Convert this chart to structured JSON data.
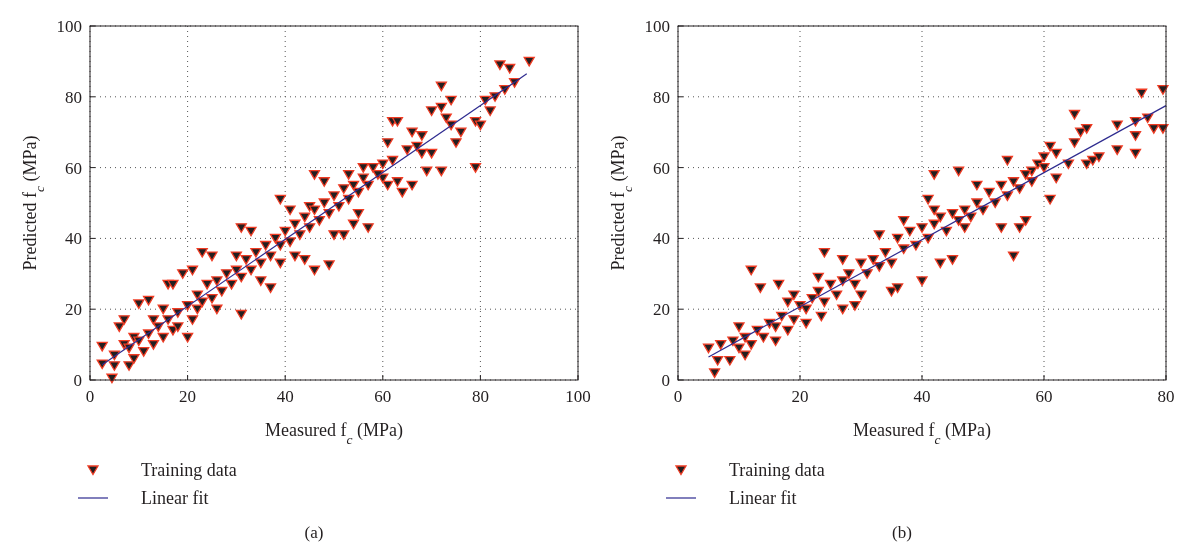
{
  "chart_data": [
    {
      "type": "scatter",
      "title": "(a)",
      "xlabel": "Measured f$_{c}$ (MPa)",
      "ylabel": "Predicted f$_{c}$ (MPa)",
      "xlim": [
        0,
        100
      ],
      "ylim": [
        0,
        100
      ],
      "xticks": [
        0,
        20,
        40,
        60,
        80,
        100
      ],
      "yticks": [
        0,
        20,
        40,
        60,
        80,
        100
      ],
      "grid": true,
      "legend": "bottom left",
      "series": [
        {
          "name": "Training data",
          "marker": "triangle",
          "color": "#f03c24",
          "x": [
            2.5,
            2.5,
            4.5,
            5,
            6,
            7,
            9,
            8,
            10,
            12,
            13,
            15,
            16,
            17,
            20,
            19,
            21,
            22,
            23,
            25,
            26,
            30,
            31,
            31,
            33,
            35,
            37,
            39,
            39,
            41,
            42,
            44,
            45,
            46,
            46,
            49,
            48,
            50,
            52,
            53,
            54,
            55,
            57,
            56,
            60,
            61,
            61,
            62,
            63,
            63,
            64,
            66,
            66,
            68,
            70,
            69,
            70,
            72,
            72,
            72,
            73,
            74,
            74,
            75,
            76,
            79,
            79,
            80,
            81,
            82,
            83,
            84,
            86,
            85,
            87,
            90,
            5,
            7,
            8,
            9,
            10,
            11,
            12,
            13,
            14,
            15,
            16,
            17,
            18,
            18,
            20,
            21,
            22,
            23,
            24,
            25,
            26,
            27,
            28,
            29,
            30,
            31,
            32,
            33,
            34,
            35,
            36,
            37,
            38,
            39,
            40,
            41,
            42,
            43,
            44,
            45,
            46,
            47,
            48,
            49,
            50,
            51,
            52,
            53,
            54,
            55,
            56,
            57,
            58,
            59,
            60,
            62,
            65,
            67,
            68
          ],
          "values": [
            9.5,
            4.5,
            0.5,
            4,
            15,
            17,
            12,
            4,
            21.5,
            22.5,
            17,
            20,
            27,
            27,
            12,
            30,
            31,
            20,
            36,
            35,
            20,
            35,
            18.5,
            43,
            42,
            28,
            26,
            33,
            51,
            48,
            35,
            34,
            49,
            31,
            58,
            32.5,
            56,
            41,
            41,
            58,
            44,
            47,
            43,
            60,
            57,
            67,
            55,
            73,
            73,
            56,
            53,
            55,
            70,
            69,
            64,
            59,
            76,
            83,
            59,
            77,
            74,
            79,
            72,
            67,
            70,
            60,
            73,
            72,
            79,
            76,
            80,
            89,
            88,
            82,
            84,
            90,
            7,
            10,
            9,
            6,
            11,
            8,
            13,
            10,
            15,
            12,
            17,
            14,
            19,
            15,
            21,
            17,
            24,
            22,
            27,
            23,
            28,
            25,
            30,
            27,
            31,
            29,
            34,
            31,
            36,
            33,
            38,
            35,
            40,
            38,
            42,
            39,
            44,
            41,
            46,
            43,
            48,
            45,
            50,
            47,
            52,
            49,
            54,
            51,
            55,
            53,
            57,
            55,
            60,
            58,
            61,
            62,
            65,
            66,
            64
          ]
        },
        {
          "name": "Linear fit",
          "type": "line",
          "marker": "none",
          "color": "#2e2b8f",
          "x": [
            2.5,
            89.5
          ],
          "values": [
            4.3,
            86.5
          ]
        }
      ]
    },
    {
      "type": "scatter",
      "title": "(b)",
      "xlabel": "Measured f$_{c}$ (MPa)",
      "ylabel": "Predicted f$_{c}$ (MPa)",
      "xlim": [
        0,
        80
      ],
      "ylim": [
        0,
        100
      ],
      "xticks": [
        0,
        20,
        40,
        60,
        80
      ],
      "yticks": [
        0,
        20,
        40,
        60,
        80,
        100
      ],
      "grid": true,
      "legend": "bottom left",
      "series": [
        {
          "name": "Training data",
          "marker": "triangle",
          "color": "#f03c24",
          "x": [
            5,
            6,
            6.5,
            7,
            8.5,
            10,
            11,
            12,
            13.5,
            16.5,
            16,
            18,
            19,
            21,
            23,
            23.5,
            24,
            27,
            27,
            29,
            30,
            33,
            35,
            36,
            37,
            40,
            41,
            42,
            42,
            43,
            45,
            46,
            47,
            49,
            53,
            54,
            55,
            56,
            57,
            58,
            60,
            61,
            61,
            62,
            62,
            64,
            65,
            65,
            66,
            67,
            67,
            68,
            69,
            72,
            72,
            75,
            75,
            75,
            76,
            77,
            78,
            79.5,
            79.5,
            9,
            10,
            11,
            12,
            13,
            14,
            15,
            16,
            17,
            18,
            19,
            20,
            21,
            22,
            23,
            24,
            25,
            26,
            27,
            28,
            29,
            30,
            31,
            32,
            33,
            34,
            35,
            36,
            37,
            38,
            39,
            40,
            41,
            42,
            43,
            44,
            45,
            46,
            47,
            48,
            49,
            50,
            51,
            52,
            53,
            54,
            55,
            56,
            57,
            58,
            59,
            60
          ],
          "values": [
            9,
            2,
            5.5,
            10,
            5.5,
            15,
            7,
            31,
            26,
            27,
            11,
            22,
            24,
            16,
            29,
            18,
            36,
            20,
            34,
            21,
            24,
            41,
            25,
            26,
            45,
            28,
            51,
            48,
            58,
            33,
            34,
            59,
            43,
            55,
            43,
            62,
            35,
            43,
            45,
            59,
            63,
            51,
            66,
            57,
            64,
            61,
            75,
            67,
            70,
            61,
            71,
            62,
            63,
            72,
            65,
            64,
            73,
            69,
            81,
            74,
            71,
            82,
            71,
            11,
            9,
            12,
            10,
            14,
            12,
            16,
            15,
            18,
            14,
            17,
            21,
            20,
            23,
            25,
            22,
            27,
            24,
            28,
            30,
            27,
            33,
            30,
            34,
            32,
            36,
            33,
            40,
            37,
            42,
            38,
            43,
            40,
            44,
            46,
            42,
            47,
            45,
            48,
            46,
            50,
            48,
            53,
            50,
            55,
            52,
            56,
            54,
            58,
            56,
            61,
            60
          ]
        },
        {
          "name": "Linear fit",
          "type": "line",
          "marker": "none",
          "color": "#2e2b8f",
          "x": [
            5,
            80
          ],
          "values": [
            6.5,
            77.5
          ]
        }
      ]
    }
  ]
}
